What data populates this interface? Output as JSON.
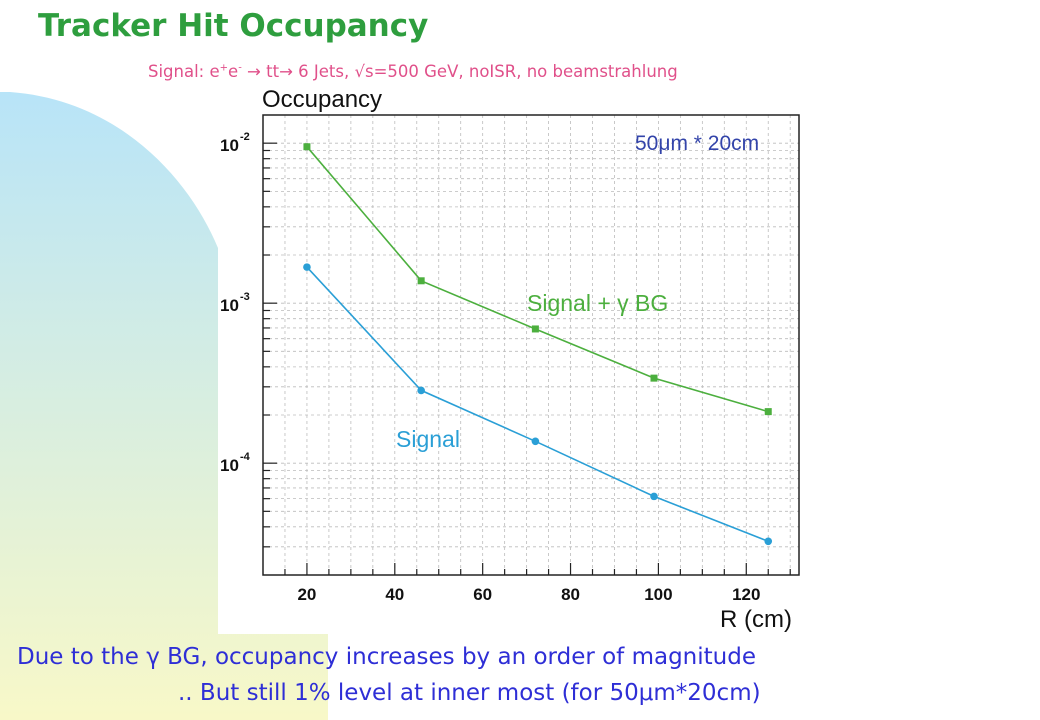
{
  "slide": {
    "title": "Tracker Hit Occupancy",
    "subtitle": {
      "prefix": "Signal: e",
      "sup_plus": "+",
      "e2": "e",
      "sup_minus": "-",
      "arrow1": " → ",
      "tt": "tt",
      "arrow2": "→ ",
      "rest": "6 Jets, √s=500 GeV, noISR, no beamstrahlung"
    },
    "footer_line1": "Due to the γ BG, occupancy increases by an order of magnitude",
    "footer_line2": ".. But still 1% level at inner most (for 50μm*20cm)"
  },
  "colors": {
    "title": "#2e9e3e",
    "subtitle": "#e0508a",
    "footer": "#2e2ed6",
    "signal_bg_series": "#4caf3e",
    "signal_series": "#2a9fd6",
    "background_gradient_top": "#b8e4f8",
    "background_gradient_bottom": "#f8f8c8"
  },
  "chart_data": {
    "type": "line",
    "title": "Occupancy",
    "xlabel": "R (cm)",
    "ylabel": "",
    "annotation": "50μm * 20cm",
    "xlim": [
      10,
      132
    ],
    "ylim": [
      2e-05,
      0.015
    ],
    "yscale": "log",
    "grid": true,
    "x_ticks": [
      20,
      40,
      60,
      80,
      100,
      120
    ],
    "y_ticks": [
      {
        "value": 0.01,
        "base": "10",
        "exp": "-2"
      },
      {
        "value": 0.001,
        "base": "10",
        "exp": "-3"
      },
      {
        "value": 0.0001,
        "base": "10",
        "exp": "-4"
      }
    ],
    "series": [
      {
        "name": "Signal + γ BG",
        "marker": "square",
        "x": [
          20,
          46,
          72,
          99,
          125
        ],
        "values": [
          0.0095,
          0.00138,
          0.00069,
          0.00034,
          0.00021
        ]
      },
      {
        "name": "Signal",
        "marker": "circle",
        "x": [
          20,
          46,
          72,
          99,
          125
        ],
        "values": [
          0.00168,
          0.000285,
          0.000137,
          6.2e-05,
          3.25e-05
        ]
      }
    ]
  }
}
